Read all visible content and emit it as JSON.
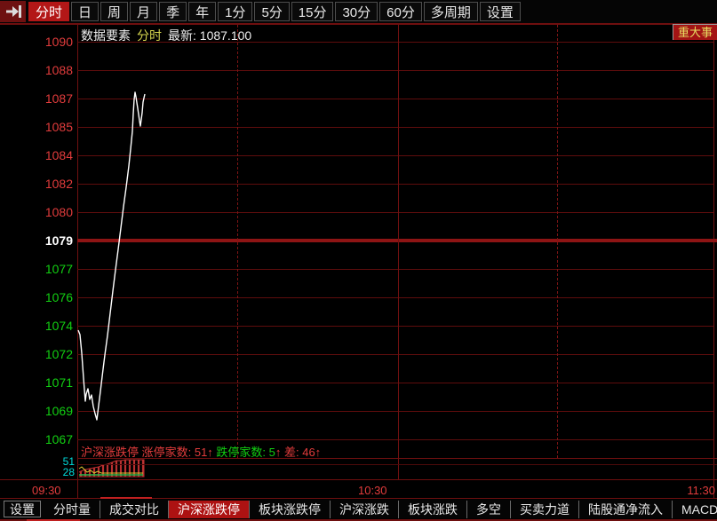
{
  "colors": {
    "background": "#000000",
    "up_red_text": "#e23c3c",
    "down_green_text": "#12cf12",
    "reference_white": "#ffffff",
    "grid_dark_red": "#701010",
    "active_tab_red": "#b31717",
    "badge_bg": "#a31414",
    "badge_text_yellow": "#e8df62",
    "scale_cyan": "#00dcdc",
    "price_line_white": "#ffffff",
    "mini_bar_red": "#b83030",
    "mini_yellow": "#d8c832",
    "mini_green": "#2db84d"
  },
  "toolbar": {
    "tabs": [
      {
        "label": "分时",
        "active": true
      },
      {
        "label": "日"
      },
      {
        "label": "周"
      },
      {
        "label": "月"
      },
      {
        "label": "季"
      },
      {
        "label": "年"
      },
      {
        "label": "1分"
      },
      {
        "label": "5分"
      },
      {
        "label": "15分"
      },
      {
        "label": "30分"
      },
      {
        "label": "60分"
      },
      {
        "label": "多周期"
      },
      {
        "label": "设置"
      }
    ]
  },
  "header": {
    "name": "数据要素",
    "period": "分时",
    "latest": "最新: 1087.100",
    "badge": "重大事"
  },
  "y_axis": {
    "labels": [
      "1090",
      "1088",
      "1087",
      "1085",
      "1084",
      "1082",
      "1080",
      "1079",
      "1077",
      "1076",
      "1074",
      "1072",
      "1071",
      "1069",
      "1067"
    ]
  },
  "x_axis": {
    "labels": [
      "09:30",
      "10:30",
      "11:30"
    ]
  },
  "indicator": {
    "title_up": "沪深涨跌停 涨停家数: 51",
    "arrow1": "↑",
    "down": " 跌停家数: 5",
    "arrow2": "↑",
    "diff": " 差: 46",
    "arrow3": "↑",
    "scale_high": "51",
    "scale_low": "28"
  },
  "bottom_tabs": [
    {
      "label": "设置",
      "boxed": true
    },
    {
      "label": "分时量"
    },
    {
      "label": "成交对比"
    },
    {
      "label": "沪深涨跌停",
      "active": true
    },
    {
      "label": "板块涨跌停"
    },
    {
      "label": "沪深涨跌"
    },
    {
      "label": "板块涨跌"
    },
    {
      "label": "多空"
    },
    {
      "label": "买卖力道"
    },
    {
      "label": "陆股通净流入"
    },
    {
      "label": "MACDFS"
    }
  ],
  "chart_data": {
    "type": "line",
    "title": "数据要素 分时",
    "latest": 1087.1,
    "reference_close": 1079,
    "ylim": [
      1067,
      1090.5
    ],
    "y_ticks": [
      1090,
      1088,
      1087,
      1085,
      1084,
      1082,
      1080,
      1079,
      1077,
      1076,
      1074,
      1072,
      1071,
      1069,
      1067
    ],
    "x_ticks": [
      "09:30",
      "10:30",
      "11:30"
    ],
    "grid": "dark-red, dashed verticals at 10:00 and 11:00, solid at 10:30",
    "series": [
      {
        "name": "price",
        "points": [
          [
            "09:30",
            1074.2
          ],
          [
            "09:31",
            1072.0
          ],
          [
            "09:32",
            1069.4
          ],
          [
            "09:33",
            1070.2
          ],
          [
            "09:34",
            1069.6
          ],
          [
            "09:35",
            1068.3
          ],
          [
            "09:36",
            1069.8
          ],
          [
            "09:37",
            1072.0
          ],
          [
            "09:38",
            1075.0
          ],
          [
            "09:39",
            1078.5
          ],
          [
            "09:40",
            1082.0
          ],
          [
            "09:41",
            1085.0
          ],
          [
            "09:42",
            1087.5
          ],
          [
            "09:42.5",
            1085.3
          ],
          [
            "09:43",
            1087.1
          ]
        ]
      }
    ],
    "limit_panel": {
      "type": "bar",
      "name": "沪深涨跌停",
      "up_limit_count": 51,
      "down_limit_count": 5,
      "diff": 46,
      "scale_labels": [
        51,
        28
      ]
    },
    "pixel_geometry": {
      "price_line": [
        [
          88,
          372
        ],
        [
          90,
          377
        ],
        [
          92,
          398
        ],
        [
          94,
          426
        ],
        [
          96,
          452
        ],
        [
          97,
          444
        ],
        [
          99,
          438
        ],
        [
          100,
          444
        ],
        [
          101,
          450
        ],
        [
          103,
          445
        ],
        [
          105,
          458
        ],
        [
          107,
          466
        ],
        [
          109,
          473
        ],
        [
          111,
          457
        ],
        [
          113,
          441
        ],
        [
          116,
          416
        ],
        [
          118,
          400
        ],
        [
          121,
          378
        ],
        [
          124,
          353
        ],
        [
          127,
          328
        ],
        [
          130,
          304
        ],
        [
          133,
          281
        ],
        [
          136,
          257
        ],
        [
          139,
          233
        ],
        [
          142,
          211
        ],
        [
          145,
          187
        ],
        [
          147,
          168
        ],
        [
          149,
          148
        ],
        [
          150,
          128
        ],
        [
          151,
          112
        ],
        [
          152,
          104
        ],
        [
          153,
          109
        ],
        [
          155,
          122
        ],
        [
          157,
          136
        ],
        [
          158,
          142
        ],
        [
          160,
          127
        ],
        [
          161,
          115
        ],
        [
          163,
          106
        ]
      ],
      "mini": {
        "baseline": 537,
        "bars": [
          [
            91,
            531
          ],
          [
            96,
            529
          ],
          [
            101,
            528
          ],
          [
            106,
            527
          ],
          [
            111,
            526
          ],
          [
            116,
            524
          ],
          [
            121,
            523
          ],
          [
            126,
            521
          ],
          [
            131,
            519
          ],
          [
            136,
            519
          ],
          [
            141,
            518
          ],
          [
            146,
            518
          ],
          [
            151,
            518
          ],
          [
            156,
            518
          ],
          [
            161,
            518
          ]
        ],
        "envelope": [
          [
            89,
            532
          ],
          [
            91,
            531
          ],
          [
            96,
            529
          ],
          [
            101,
            528
          ],
          [
            106,
            527
          ],
          [
            111,
            526
          ],
          [
            116,
            524
          ],
          [
            121,
            523
          ],
          [
            126,
            521
          ],
          [
            131,
            519
          ],
          [
            136,
            519
          ],
          [
            141,
            518
          ],
          [
            162,
            518
          ],
          [
            162,
            537
          ],
          [
            89,
            537
          ]
        ],
        "yellow_line": [
          [
            89,
            528
          ],
          [
            92,
            526
          ],
          [
            95,
            529
          ],
          [
            98,
            532
          ],
          [
            102,
            530
          ],
          [
            106,
            533
          ],
          [
            110,
            531
          ],
          [
            114,
            533
          ],
          [
            125,
            533
          ],
          [
            161,
            533
          ]
        ],
        "green_line": [
          [
            89,
            535
          ],
          [
            161,
            535
          ]
        ]
      }
    }
  }
}
